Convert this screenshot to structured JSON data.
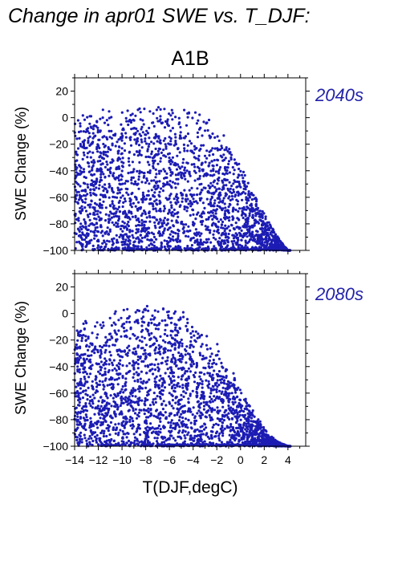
{
  "page_title": "Change in apr01 SWE vs. T_DJF:",
  "colors": {
    "points": "#1c1cb4",
    "period_label": "#2222aa",
    "axis": "#000000"
  },
  "chart_data": [
    {
      "type": "scatter",
      "title": "A1B",
      "panel_label": "2040s",
      "xlabel": "",
      "ylabel": "SWE Change (%)",
      "xlim": [
        -14,
        5.5
      ],
      "ylim": [
        -100,
        30
      ],
      "yticks": [
        20,
        0,
        -20,
        -40,
        -60,
        -80,
        -100
      ],
      "xticks": [
        -14,
        -12,
        -10,
        -8,
        -6,
        -4,
        -2,
        0,
        2,
        4
      ],
      "show_x_tick_labels": false,
      "grid": false,
      "description_of_cloud": "dense points from x=-14 to 4, upper edge near y=5-10 for x<-3 falling to -100 near x=4; floor at -100 from x=-12 to 4",
      "envelope_top": [
        [
          -14,
          2
        ],
        [
          -12,
          6
        ],
        [
          -10,
          9
        ],
        [
          -8,
          8
        ],
        [
          -6,
          8
        ],
        [
          -4,
          6
        ],
        [
          -3,
          3
        ],
        [
          -2,
          -5
        ],
        [
          -1,
          -15
        ],
        [
          0,
          -35
        ],
        [
          1,
          -55
        ],
        [
          2,
          -72
        ],
        [
          3,
          -88
        ],
        [
          4,
          -100
        ]
      ],
      "floor": [
        -12,
        4
      ]
    },
    {
      "type": "scatter",
      "title": "",
      "panel_label": "2080s",
      "xlabel": "T(DJF,degC)",
      "ylabel": "SWE Change (%)",
      "xlim": [
        -14,
        5.5
      ],
      "ylim": [
        -100,
        30
      ],
      "yticks": [
        20,
        0,
        -20,
        -40,
        -60,
        -80,
        -100
      ],
      "xticks": [
        -14,
        -12,
        -10,
        -8,
        -6,
        -4,
        -2,
        0,
        2,
        4
      ],
      "xtick_labels": [
        "−14",
        "−12",
        "−10",
        "−8",
        "−6",
        "−4",
        "−2",
        "0",
        "2",
        "4"
      ],
      "show_x_tick_labels": true,
      "grid": false,
      "description_of_cloud": "points from x=-14 to 4, upper edge near y=5-10 for x around -10 to -6, falling to -100 near x=3.5; floor at -100 from x=-12 to 4",
      "envelope_top": [
        [
          -14,
          -8
        ],
        [
          -12,
          -3
        ],
        [
          -10,
          4
        ],
        [
          -8,
          8
        ],
        [
          -6,
          6
        ],
        [
          -5,
          3
        ],
        [
          -4,
          -5
        ],
        [
          -3,
          -12
        ],
        [
          -2,
          -22
        ],
        [
          -1,
          -38
        ],
        [
          0,
          -55
        ],
        [
          1,
          -72
        ],
        [
          2,
          -86
        ],
        [
          3,
          -96
        ],
        [
          4,
          -100
        ]
      ],
      "floor": [
        -12,
        4
      ]
    }
  ]
}
